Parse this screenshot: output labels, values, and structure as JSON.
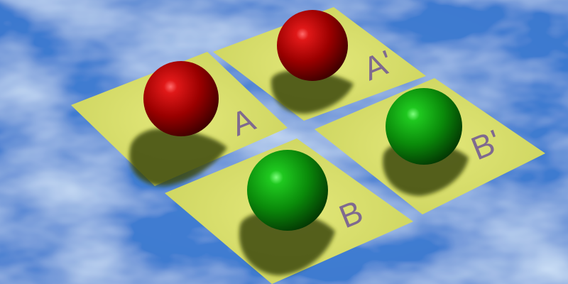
{
  "scene": {
    "colors": {
      "background": "#2d6ec4",
      "background_light": "#b9d8f7",
      "tile": "#d6dc68",
      "tile_shadow": "#3f4a10",
      "label": "#7f6a8f",
      "red_sphere": "#b30000",
      "green_sphere": "#18a018"
    },
    "tiles": [
      {
        "id": "a",
        "label": "A",
        "sphere": "red"
      },
      {
        "id": "a-prime",
        "label": "A'",
        "sphere": "red"
      },
      {
        "id": "b",
        "label": "B",
        "sphere": "green"
      },
      {
        "id": "b-prime",
        "label": "B'",
        "sphere": "green"
      }
    ]
  }
}
